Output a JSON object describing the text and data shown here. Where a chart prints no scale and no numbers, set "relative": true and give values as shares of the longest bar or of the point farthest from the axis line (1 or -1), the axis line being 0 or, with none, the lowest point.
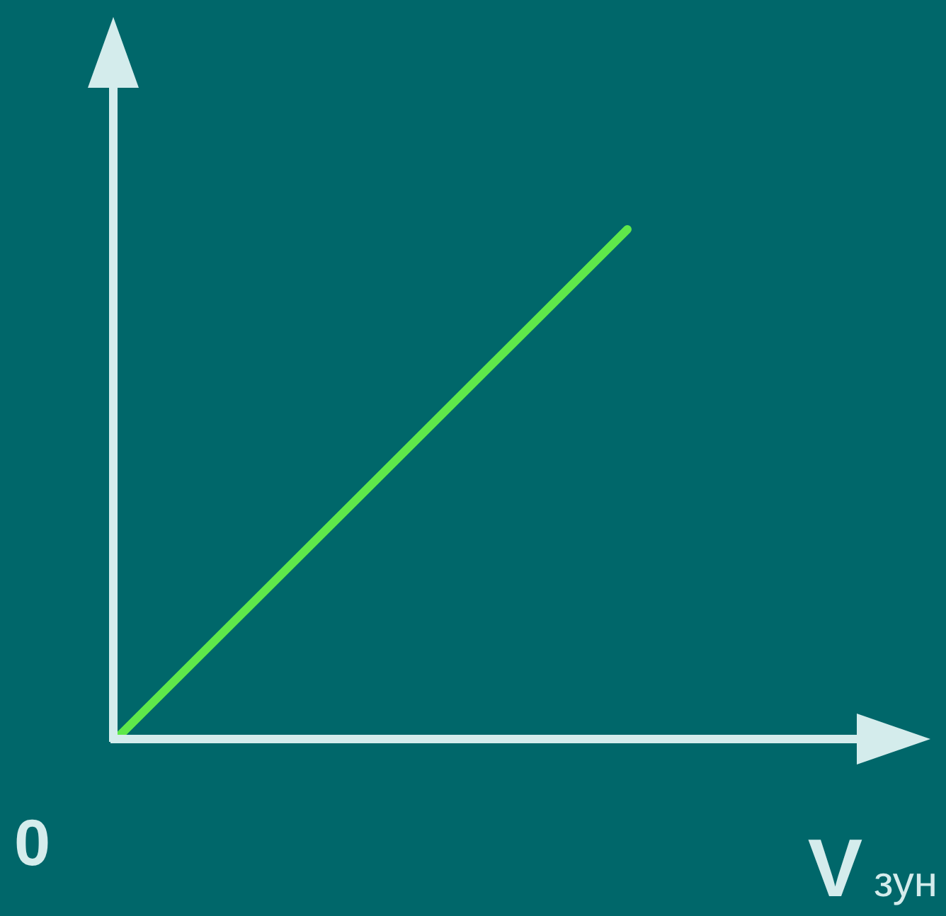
{
  "chart_data": {
    "type": "line",
    "relative": true,
    "xlabel": "V$_{зун}$",
    "annotations": [
      "0"
    ],
    "categories": [
      null,
      null
    ],
    "series": [
      {
        "color": "#5fe84a",
        "values": [
          0,
          1
        ]
      }
    ]
  }
}
